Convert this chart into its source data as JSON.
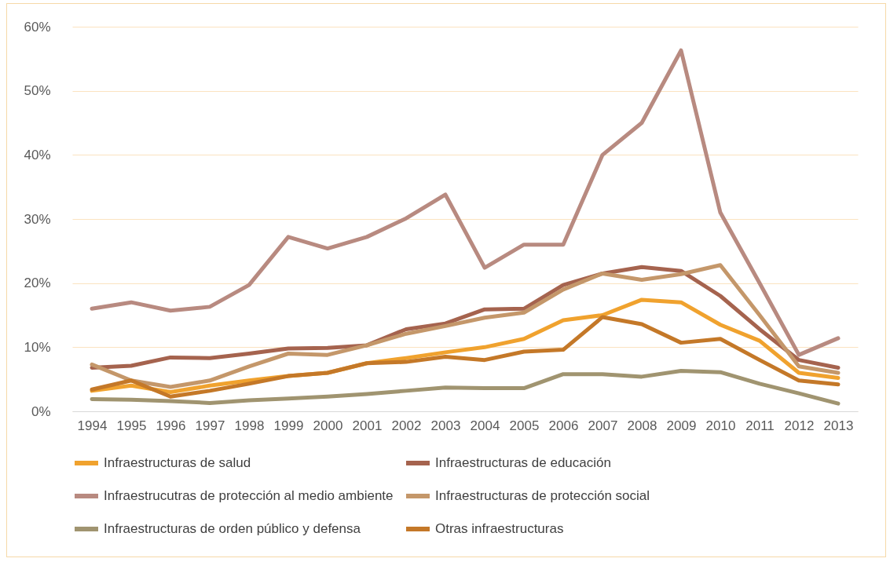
{
  "chart_data": {
    "type": "line",
    "categories": [
      "1994",
      "1995",
      "1996",
      "1997",
      "1998",
      "1999",
      "2000",
      "2001",
      "2002",
      "2003",
      "2004",
      "2005",
      "2006",
      "2007",
      "2008",
      "2009",
      "2010",
      "2011",
      "2012",
      "2013"
    ],
    "ylim": [
      0,
      60
    ],
    "yticks": [
      {
        "value": 0,
        "label": "0%"
      },
      {
        "value": 10,
        "label": "10%"
      },
      {
        "value": 20,
        "label": "20%"
      },
      {
        "value": 30,
        "label": "30%"
      },
      {
        "value": 40,
        "label": "40%"
      },
      {
        "value": 50,
        "label": "50%"
      },
      {
        "value": 60,
        "label": "60%"
      }
    ],
    "grid": "y",
    "legend": "bottom",
    "marker": "none",
    "line_style": "solid",
    "series": [
      {
        "name": "Infraestructuras de salud",
        "color": "#f0a22e",
        "values": [
          3.2,
          4.0,
          3.0,
          4.0,
          4.8,
          5.5,
          6.0,
          7.5,
          8.3,
          9.2,
          10.0,
          11.3,
          14.2,
          15.0,
          17.4,
          17.0,
          13.5,
          11.0,
          6.0,
          5.2
        ]
      },
      {
        "name": "Infraestructuras de educación",
        "color": "#a5634e",
        "values": [
          6.8,
          7.1,
          8.4,
          8.3,
          9.0,
          9.8,
          9.9,
          10.3,
          12.8,
          13.7,
          15.9,
          16.0,
          19.7,
          21.5,
          22.5,
          21.9,
          18.0,
          12.8,
          8.0,
          6.8
        ]
      },
      {
        "name": "Infraestrucutras de protección al medio ambiente",
        "color": "#b88a80",
        "values": [
          16.0,
          17.0,
          15.7,
          16.3,
          19.7,
          27.2,
          25.4,
          27.2,
          30.1,
          33.8,
          22.4,
          26.0,
          26.0,
          40.0,
          45.0,
          56.3,
          31.0,
          20.0,
          8.8,
          11.4
        ]
      },
      {
        "name": "Infraestructuras de protección social",
        "color": "#c4976a",
        "values": [
          7.3,
          4.8,
          3.8,
          4.8,
          7.0,
          9.0,
          8.8,
          10.3,
          12.1,
          13.3,
          14.6,
          15.4,
          19.0,
          21.5,
          20.5,
          21.4,
          22.8,
          15.0,
          7.0,
          6.0
        ]
      },
      {
        "name": "Infraestructuras de orden público y defensa",
        "color": "#a09470",
        "values": [
          1.9,
          1.8,
          1.6,
          1.3,
          1.7,
          2.0,
          2.3,
          2.7,
          3.2,
          3.7,
          3.6,
          3.6,
          5.8,
          5.8,
          5.4,
          6.3,
          6.1,
          4.3,
          2.8,
          1.2
        ]
      },
      {
        "name": "Otras infraestructuras",
        "color": "#c47828",
        "values": [
          3.4,
          4.8,
          2.3,
          3.2,
          4.3,
          5.5,
          6.0,
          7.5,
          7.7,
          8.5,
          8.0,
          9.3,
          9.6,
          14.7,
          13.6,
          10.7,
          11.3,
          8.0,
          4.8,
          4.2
        ]
      }
    ]
  }
}
